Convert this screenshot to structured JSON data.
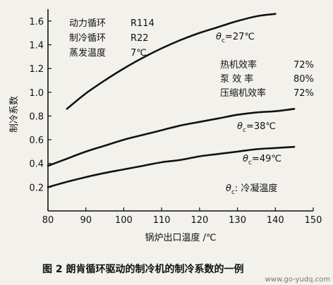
{
  "chart_data": {
    "type": "line",
    "xlabel": "锅炉出口温度 /℃",
    "ylabel": "制冷系数",
    "xlim": [
      80,
      150
    ],
    "ylim": [
      0,
      1.7
    ],
    "x_ticks": [
      "80",
      "90",
      "100",
      "110",
      "120",
      "130",
      "140",
      "150"
    ],
    "y_ticks": [
      "0.2",
      "0.4",
      "0.6",
      "0.8",
      "1.0",
      "1.2",
      "1.4",
      "1.6"
    ],
    "grid": false,
    "series": [
      {
        "name": "θc=27℃",
        "x": [
          85,
          90,
          95,
          100,
          105,
          110,
          115,
          120,
          125,
          130,
          135,
          140
        ],
        "y": [
          0.86,
          0.99,
          1.1,
          1.2,
          1.29,
          1.37,
          1.44,
          1.5,
          1.55,
          1.6,
          1.64,
          1.66
        ]
      },
      {
        "name": "θc=38℃",
        "x": [
          80,
          85,
          90,
          95,
          100,
          105,
          110,
          115,
          120,
          125,
          130,
          135,
          140,
          145
        ],
        "y": [
          0.38,
          0.44,
          0.5,
          0.55,
          0.6,
          0.64,
          0.68,
          0.72,
          0.75,
          0.78,
          0.81,
          0.83,
          0.84,
          0.86
        ]
      },
      {
        "name": "θc=49℃",
        "x": [
          80,
          85,
          90,
          95,
          100,
          105,
          110,
          115,
          120,
          125,
          130,
          135,
          140,
          145
        ],
        "y": [
          0.2,
          0.245,
          0.285,
          0.32,
          0.35,
          0.38,
          0.41,
          0.43,
          0.46,
          0.48,
          0.5,
          0.52,
          0.53,
          0.54
        ]
      }
    ]
  },
  "legend_box": {
    "row1": {
      "label": "动力循环",
      "value": "R114"
    },
    "row2": {
      "label": "制冷循环",
      "value": "R22"
    },
    "row3": {
      "label": "蒸发温度",
      "value": "7℃"
    }
  },
  "efficiency_box": {
    "row1": {
      "label": "热机效率",
      "value": "72%"
    },
    "row2": {
      "label": "泵 效 率",
      "value": "80%"
    },
    "row3": {
      "label": "压缩机效率",
      "value": "72%"
    }
  },
  "series_labels": {
    "s27": {
      "symbol": "θ",
      "sub": "c",
      "rest": "=27℃"
    },
    "s38": {
      "symbol": "θ",
      "sub": "c",
      "rest": "=38℃"
    },
    "s49": {
      "symbol": "θ",
      "sub": "c",
      "rest": "=49℃"
    }
  },
  "note": {
    "symbol": "θ",
    "sub": "c",
    "rest": ": 冷凝温度"
  },
  "caption": "图 2  朗肯循环驱动的制冷机的制冷系数的一例",
  "watermark": "www.go-yudq.com",
  "colors": {
    "line": "#111111",
    "background": "#f2f1ec"
  }
}
